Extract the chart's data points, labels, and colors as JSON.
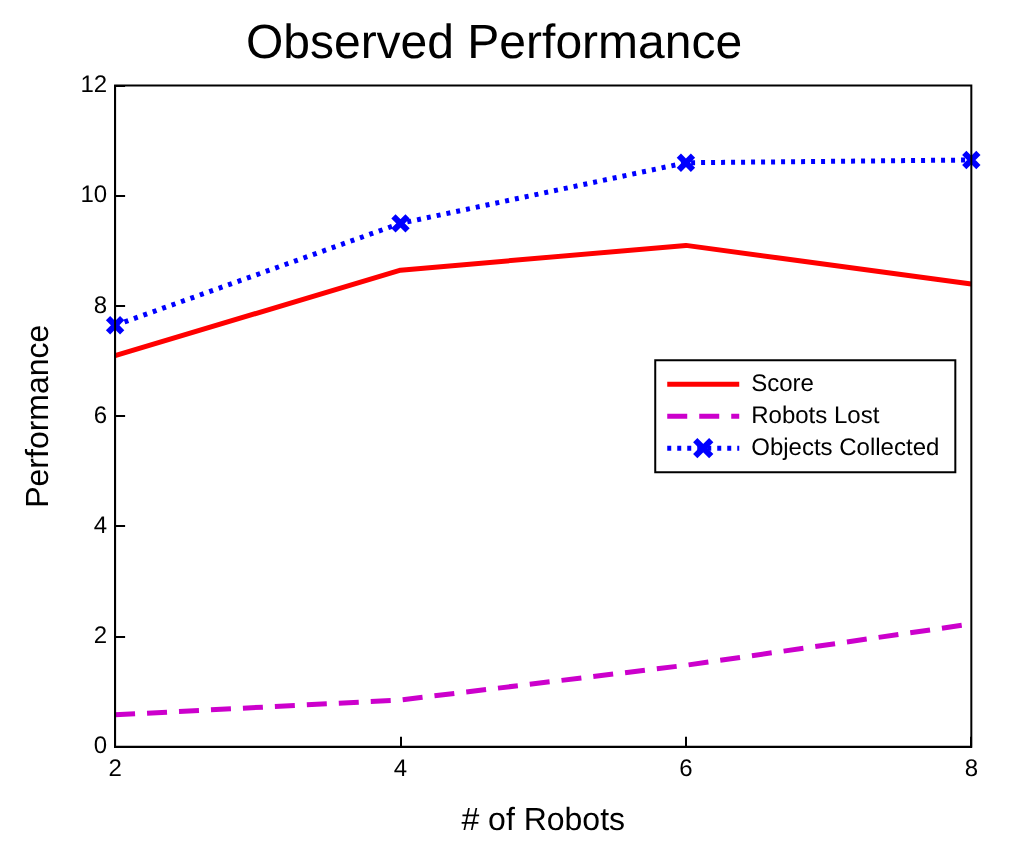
{
  "chart_data": {
    "type": "line",
    "title": "Observed Performance",
    "xlabel": "# of Robots",
    "ylabel": "Performance",
    "x": [
      2,
      4,
      6,
      8
    ],
    "xlim": [
      2,
      8
    ],
    "xticks": [
      2,
      4,
      6,
      8
    ],
    "ylim": [
      0,
      12
    ],
    "yticks": [
      0,
      2,
      4,
      6,
      8,
      10,
      12
    ],
    "grid": false,
    "legend": "right",
    "series": [
      {
        "name": "Score",
        "color": "#ff0000",
        "values": [
          7.1,
          8.65,
          9.1,
          8.4
        ],
        "line_style": "solid",
        "marker": "none"
      },
      {
        "name": "Robots Lost",
        "color": "#cc00cc",
        "values": [
          0.58,
          0.85,
          1.48,
          2.23
        ],
        "line_style": "dashed",
        "marker": "none"
      },
      {
        "name": "Objects Collected",
        "color": "#0000ff",
        "values": [
          7.65,
          9.5,
          10.6,
          10.65
        ],
        "line_style": "dotted",
        "marker": "cross"
      }
    ]
  }
}
